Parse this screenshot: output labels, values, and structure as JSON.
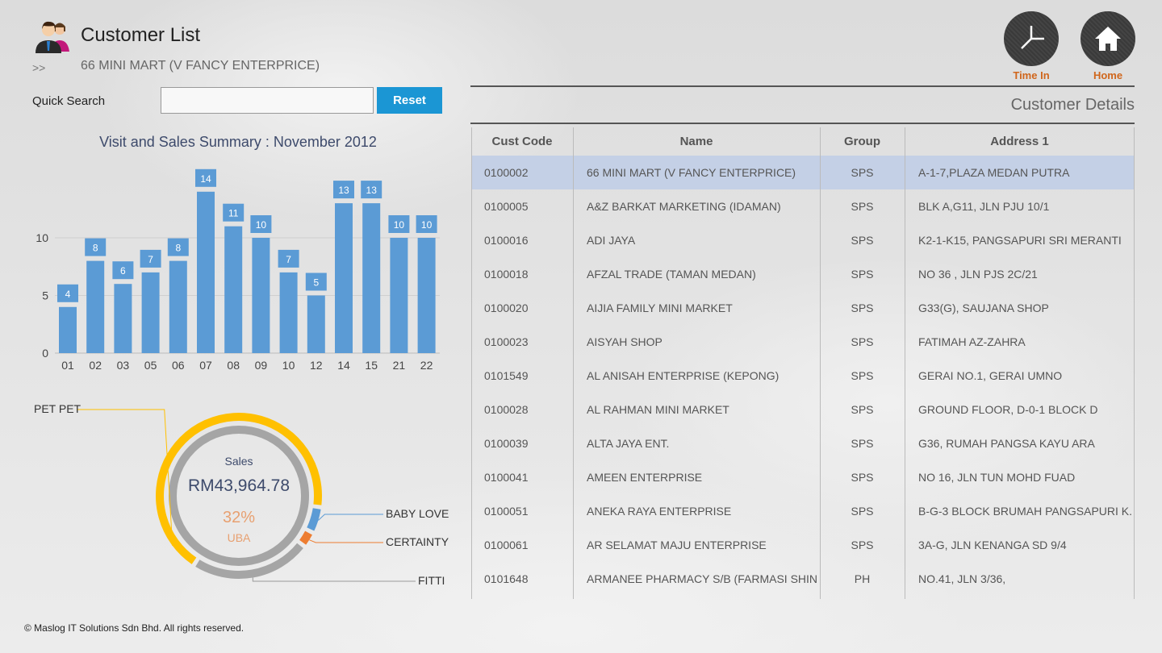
{
  "header": {
    "title": "Customer List",
    "breadcrumb_arrow": ">>",
    "breadcrumb": "66 MINI MART (V FANCY ENTERPRICE)"
  },
  "search": {
    "label": "Quick Search",
    "value": "",
    "placeholder": "",
    "reset_label": "Reset"
  },
  "actions": {
    "time_in": "Time In",
    "home": "Home"
  },
  "details": {
    "title": "Customer Details"
  },
  "table": {
    "columns": [
      "Cust Code",
      "Name",
      "Group",
      "Address 1"
    ],
    "selected_index": 0,
    "rows": [
      [
        "0100002",
        "66 MINI MART (V FANCY ENTERPRICE)",
        "SPS",
        "A-1-7,PLAZA MEDAN PUTRA"
      ],
      [
        "0100005",
        "A&Z BARKAT MARKETING (IDAMAN)",
        "SPS",
        "BLK A,G11, JLN PJU 10/1"
      ],
      [
        "0100016",
        "ADI JAYA",
        "SPS",
        "K2-1-K15, PANGSAPURI SRI MERANTI"
      ],
      [
        "0100018",
        "AFZAL TRADE (TAMAN MEDAN)",
        "SPS",
        "NO 36 , JLN PJS 2C/21"
      ],
      [
        "0100020",
        "AIJIA FAMILY MINI MARKET",
        "SPS",
        "G33(G), SAUJANA SHOP"
      ],
      [
        "0100023",
        "AISYAH SHOP",
        "SPS",
        "FATIMAH AZ-ZAHRA"
      ],
      [
        "0101549",
        "AL ANISAH ENTERPRISE (KEPONG)",
        "SPS",
        "GERAI NO.1, GERAI UMNO"
      ],
      [
        "0100028",
        "AL RAHMAN MINI MARKET",
        "SPS",
        "GROUND FLOOR, D-0-1 BLOCK D"
      ],
      [
        "0100039",
        "ALTA JAYA ENT.",
        "SPS",
        "G36, RUMAH PANGSA KAYU ARA"
      ],
      [
        "0100041",
        "AMEEN ENTERPRISE",
        "SPS",
        "NO 16, JLN TUN MOHD FUAD"
      ],
      [
        "0100051",
        "ANEKA RAYA ENTERPRISE",
        "SPS",
        "B-G-3 BLOCK BRUMAH PANGSAPURI K."
      ],
      [
        "0100061",
        "AR SELAMAT MAJU ENTERPRISE",
        "SPS",
        "3A-G, JLN KENANGA SD 9/4"
      ],
      [
        "0101648",
        "ARMANEE PHARMACY S/B (FARMASI SHIN",
        "PH",
        "NO.41, JLN 3/36,"
      ]
    ]
  },
  "chart_data": [
    {
      "type": "bar",
      "title": "Visit and Sales Summary : November 2012",
      "categories": [
        "01",
        "02",
        "03",
        "05",
        "06",
        "07",
        "08",
        "09",
        "10",
        "12",
        "14",
        "15",
        "21",
        "22"
      ],
      "values": [
        4,
        8,
        6,
        7,
        8,
        14,
        11,
        10,
        7,
        5,
        13,
        13,
        10,
        10
      ],
      "yticks": [
        0,
        5,
        10
      ],
      "ylim": [
        0,
        14
      ],
      "grid": true,
      "color": "#5b9bd5"
    },
    {
      "type": "pie",
      "subtype": "donut",
      "center_label": "Sales",
      "center_value": "RM43,964.78",
      "highlight_percent": "32%",
      "highlight_label": "UBA",
      "slices": [
        {
          "name": "PET PET",
          "value": 66,
          "color": "#ffc000"
        },
        {
          "name": "BABY LOVE",
          "value": 5,
          "color": "#5b9bd5"
        },
        {
          "name": "CERTAINTY",
          "value": 3,
          "color": "#ed7d31"
        },
        {
          "name": "FITTI",
          "value": 23,
          "color": "#a5a5a5"
        }
      ]
    }
  ],
  "footer": "© Maslog IT Solutions Sdn Bhd. All rights reserved."
}
